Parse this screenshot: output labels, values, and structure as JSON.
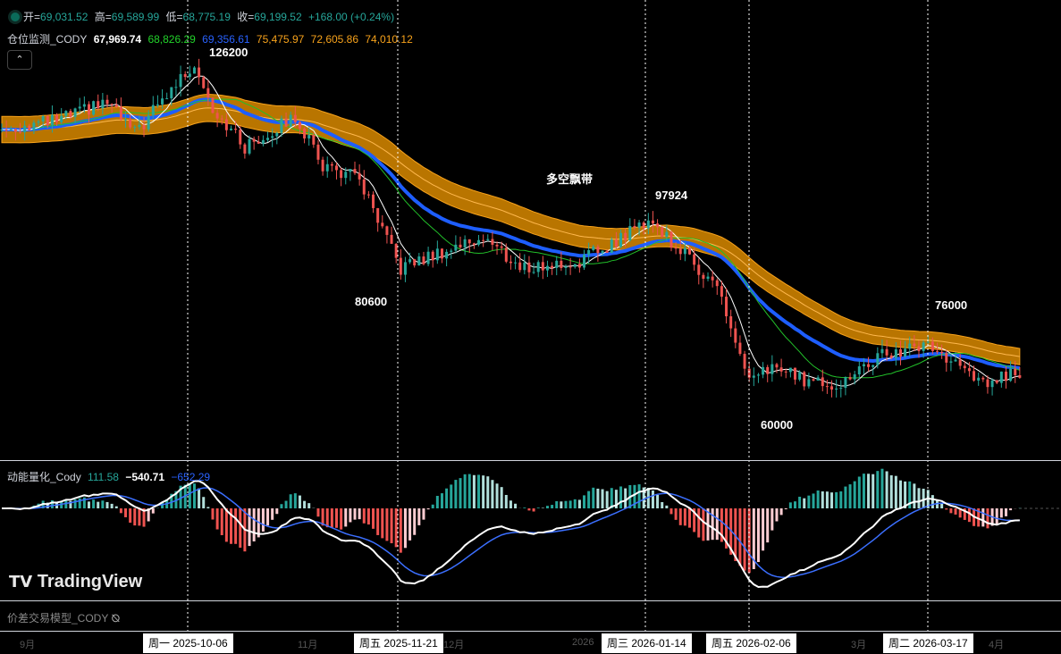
{
  "ohlc": {
    "open_label": "开=",
    "open": "69,031.52",
    "high_label": "高=",
    "high": "69,589.99",
    "low_label": "低=",
    "low": "68,775.19",
    "close_label": "收=",
    "close": "69,199.52",
    "change": "+168.00 (+0.24%)"
  },
  "indicator1": {
    "name": "仓位监测_CODY",
    "v1": "67,969.74",
    "v2": "68,826.29",
    "v3": "69,356.61",
    "v4": "75,475.97",
    "v5": "72,605.86",
    "v6": "74,010.12"
  },
  "indicator2": {
    "name": "动能量化_Cody",
    "v1": "111.58",
    "v2": "−540.71",
    "v3": "−652.29"
  },
  "collapse_icon": "chevron-up-icon",
  "annotations": {
    "a1": "126200",
    "a2": "80600",
    "a3": "97924",
    "a4": "多空飘带",
    "a5": "76000",
    "a6": "60000"
  },
  "logo": "TradingView",
  "model_label": "价差交易模型_CODY",
  "time_axis": {
    "ticks": [
      "9月",
      "11月",
      "12月",
      "2026",
      "3月",
      "4月"
    ],
    "dates": [
      "周一 2025-10-06",
      "周五 2025-11-21",
      "周三 2026-01-14",
      "周五 2026-02-06",
      "周二 2026-03-17"
    ]
  },
  "colors": {
    "up": "#26a69a",
    "down": "#ef5350",
    "band": "#f7a21b",
    "blue": "#1e5eff",
    "green": "#22c02a"
  },
  "chart_data": {
    "type": "candlestick",
    "price_range": [
      60000,
      126200
    ],
    "keypoints": [
      [
        0,
        112700
      ],
      [
        12,
        114400
      ],
      [
        23,
        117800
      ],
      [
        29,
        111900
      ],
      [
        37,
        120300
      ],
      [
        42,
        125300
      ],
      [
        46,
        116900
      ],
      [
        53,
        109300
      ],
      [
        58,
        111900
      ],
      [
        64,
        115200
      ],
      [
        70,
        106000
      ],
      [
        78,
        103400
      ],
      [
        82,
        95000
      ],
      [
        87,
        86600
      ],
      [
        92,
        88300
      ],
      [
        97,
        90000
      ],
      [
        105,
        92500
      ],
      [
        113,
        86600
      ],
      [
        125,
        87500
      ],
      [
        134,
        91700
      ],
      [
        141,
        95900
      ],
      [
        148,
        90000
      ],
      [
        156,
        83200
      ],
      [
        163,
        64700
      ],
      [
        168,
        68100
      ],
      [
        175,
        65600
      ],
      [
        183,
        64700
      ],
      [
        191,
        69800
      ],
      [
        202,
        72300
      ],
      [
        207,
        68900
      ],
      [
        214,
        64700
      ],
      [
        222,
        67200
      ]
    ]
  }
}
